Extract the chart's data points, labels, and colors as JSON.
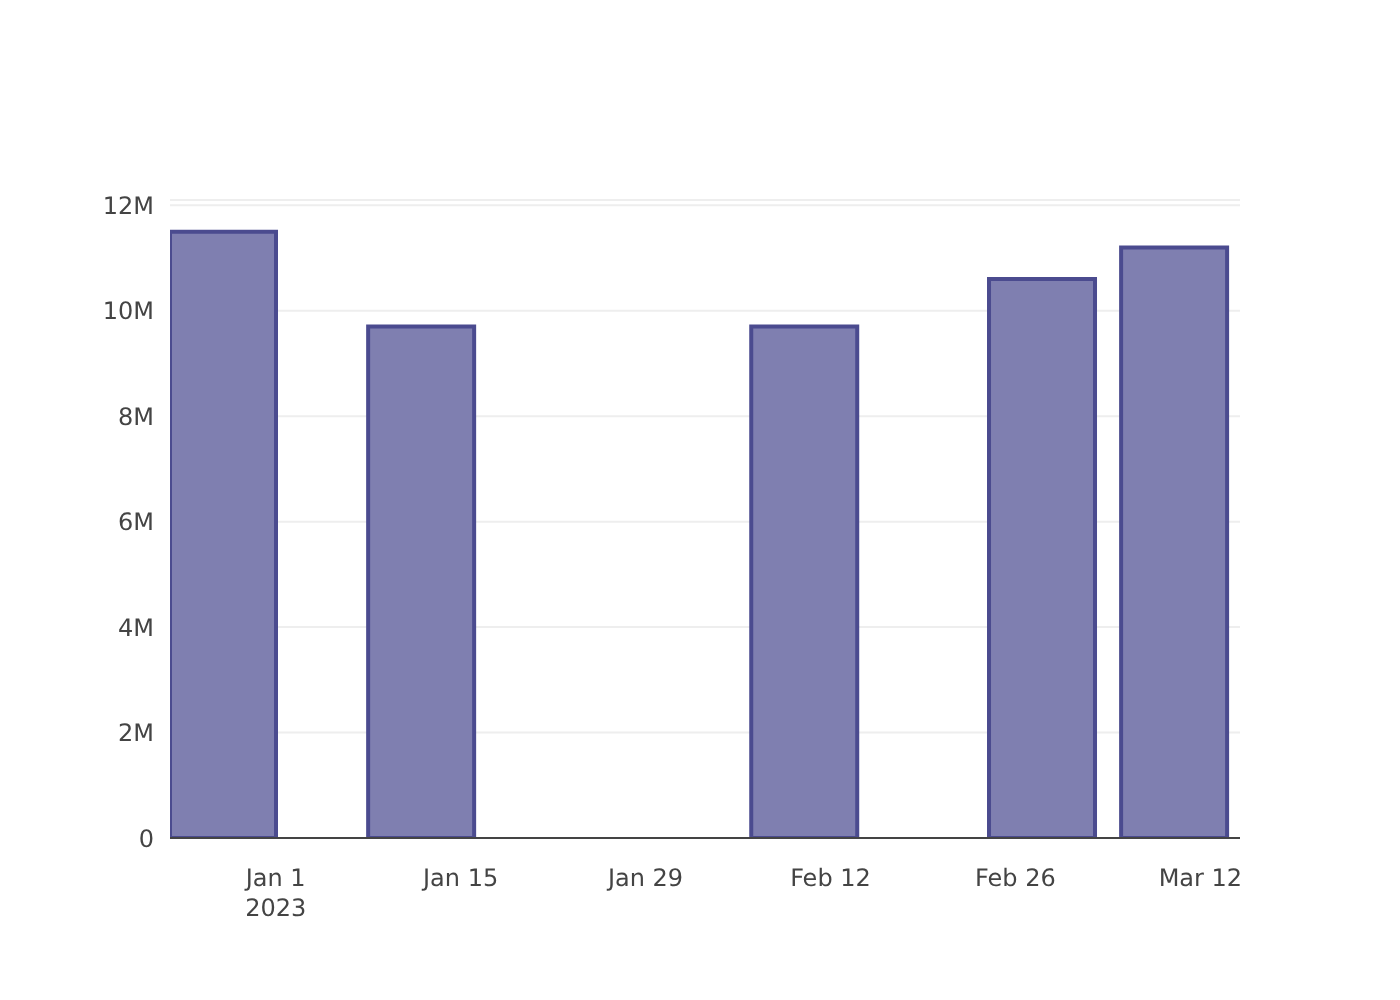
{
  "chart_data": {
    "type": "bar",
    "x": [
      "2022-12-28",
      "2023-01-12",
      "2023-02-10",
      "2023-02-28",
      "2023-03-10"
    ],
    "values": [
      11500000,
      9700000,
      9700000,
      10600000,
      11200000
    ],
    "color": "#7f7fb0",
    "xlim": [
      "2022-12-24",
      "2023-03-15"
    ],
    "xticks": [
      {
        "value": "2023-01-01",
        "label": "Jan 1\n2023"
      },
      {
        "value": "2023-01-15",
        "label": "Jan 15"
      },
      {
        "value": "2023-01-29",
        "label": "Jan 29"
      },
      {
        "value": "2023-02-12",
        "label": "Feb 12"
      },
      {
        "value": "2023-02-26",
        "label": "Feb 26"
      },
      {
        "value": "2023-03-12",
        "label": "Mar 12"
      }
    ],
    "ylim": [
      0,
      12100000
    ],
    "yticks": [
      0,
      {
        "value": 2000000,
        "label": "2M"
      },
      {
        "value": 4000000,
        "label": "4M"
      },
      {
        "value": 6000000,
        "label": "6M"
      },
      {
        "value": 8000000,
        "label": "8M"
      },
      {
        "value": 10000000,
        "label": "10M"
      },
      {
        "value": 12000000,
        "label": "12M"
      }
    ],
    "grid": "y"
  }
}
